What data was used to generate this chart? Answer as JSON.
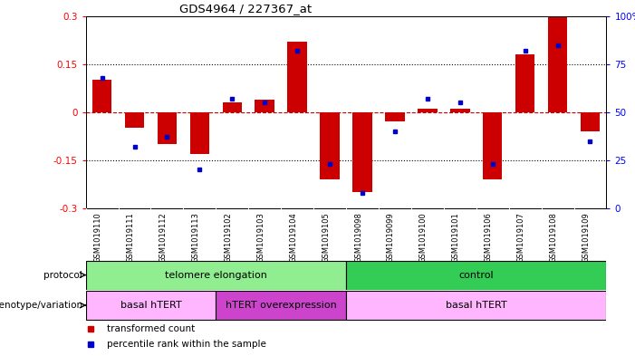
{
  "title": "GDS4964 / 227367_at",
  "samples": [
    "GSM1019110",
    "GSM1019111",
    "GSM1019112",
    "GSM1019113",
    "GSM1019102",
    "GSM1019103",
    "GSM1019104",
    "GSM1019105",
    "GSM1019098",
    "GSM1019099",
    "GSM1019100",
    "GSM1019101",
    "GSM1019106",
    "GSM1019107",
    "GSM1019108",
    "GSM1019109"
  ],
  "bar_values": [
    0.1,
    -0.05,
    -0.1,
    -0.13,
    0.03,
    0.04,
    0.22,
    -0.21,
    -0.25,
    -0.03,
    0.01,
    0.01,
    -0.21,
    0.18,
    0.3,
    -0.06
  ],
  "dot_values": [
    68,
    32,
    37,
    20,
    57,
    55,
    82,
    23,
    8,
    40,
    57,
    55,
    23,
    82,
    85,
    35
  ],
  "ylim": [
    -0.3,
    0.3
  ],
  "yticks_left": [
    -0.3,
    -0.15,
    0.0,
    0.15,
    0.3
  ],
  "yticks_right": [
    0,
    25,
    50,
    75,
    100
  ],
  "bar_color": "#cc0000",
  "dot_color": "#0000cc",
  "zero_line_color": "#cc0000",
  "grid_color": "#000000",
  "protocol_groups": [
    {
      "label": "telomere elongation",
      "start": 0,
      "end": 8,
      "color": "#90ee90"
    },
    {
      "label": "control",
      "start": 8,
      "end": 16,
      "color": "#33cc55"
    }
  ],
  "genotype_groups": [
    {
      "label": "basal hTERT",
      "start": 0,
      "end": 4,
      "color": "#ffb6ff"
    },
    {
      "label": "hTERT overexpression",
      "start": 4,
      "end": 8,
      "color": "#cc44cc"
    },
    {
      "label": "basal hTERT",
      "start": 8,
      "end": 16,
      "color": "#ffb6ff"
    }
  ],
  "legend_items": [
    {
      "label": "transformed count",
      "color": "#cc0000"
    },
    {
      "label": "percentile rank within the sample",
      "color": "#0000cc"
    }
  ],
  "label_protocol": "protocol",
  "label_genotype": "genotype/variation",
  "bg_color": "#ffffff",
  "plot_bg": "#ffffff",
  "tick_area_bg": "#cccccc",
  "bar_width": 0.6
}
